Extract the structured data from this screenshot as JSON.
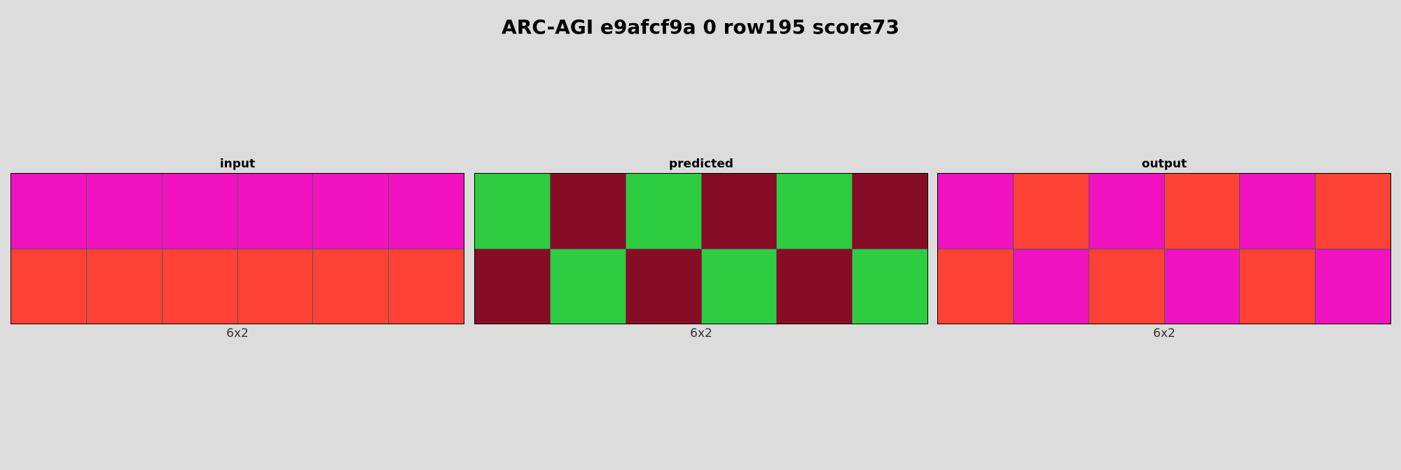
{
  "title": "ARC-AGI e9afcf9a 0 row195 score73",
  "palette": {
    "2": "#ff4136",
    "6": "#f012be",
    "3": "#2ecc40",
    "9": "#870c25"
  },
  "panels": [
    {
      "label": "input",
      "size": "6x2",
      "grid": [
        [
          6,
          6,
          6,
          6,
          6,
          6
        ],
        [
          2,
          2,
          2,
          2,
          2,
          2
        ]
      ]
    },
    {
      "label": "predicted",
      "size": "6x2",
      "grid": [
        [
          3,
          9,
          3,
          9,
          3,
          9
        ],
        [
          9,
          3,
          9,
          3,
          9,
          3
        ]
      ]
    },
    {
      "label": "output",
      "size": "6x2",
      "grid": [
        [
          6,
          2,
          6,
          2,
          6,
          2
        ],
        [
          2,
          6,
          2,
          6,
          2,
          6
        ]
      ]
    }
  ]
}
